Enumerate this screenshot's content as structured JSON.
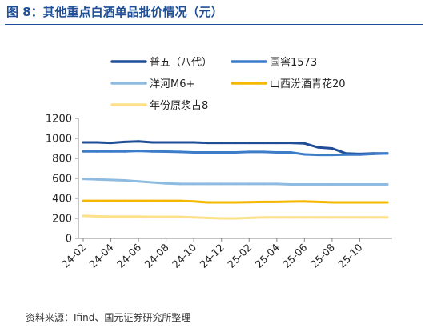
{
  "figure": {
    "title": "图 8：其他重点白酒单品批价情况（元）",
    "source": "资料来源：Ifind、国元证券研究所整理"
  },
  "chart_data": {
    "type": "line",
    "title": "",
    "xlabel": "",
    "ylabel": "",
    "ylim": [
      0,
      1200
    ],
    "yticks": [
      0,
      200,
      400,
      600,
      800,
      1000,
      1200
    ],
    "x_tick_labels": [
      "24-02",
      "24-04",
      "24-06",
      "24-08",
      "24-10",
      "24-12",
      "25-02",
      "25-04",
      "25-06",
      "25-08",
      "25-10"
    ],
    "x": [
      "24-02",
      "24-03",
      "24-04",
      "24-05",
      "24-06",
      "24-07",
      "24-08",
      "24-09",
      "24-10",
      "24-11",
      "24-12",
      "25-01",
      "25-02",
      "25-03",
      "25-04",
      "25-05",
      "25-06",
      "25-07",
      "25-08",
      "25-09",
      "25-10",
      "25-11",
      "25-12"
    ],
    "grid": false,
    "legend_position": "top",
    "series": [
      {
        "name": "普五（八代）",
        "color": "#1f4e96",
        "values": [
          960,
          960,
          955,
          965,
          970,
          960,
          960,
          960,
          960,
          955,
          955,
          955,
          955,
          955,
          955,
          955,
          950,
          910,
          900,
          850,
          845,
          850,
          850
        ]
      },
      {
        "name": "国窖1573",
        "color": "#3d7cc9",
        "values": [
          870,
          870,
          870,
          870,
          875,
          870,
          868,
          865,
          860,
          860,
          860,
          860,
          865,
          865,
          860,
          860,
          840,
          835,
          835,
          838,
          838,
          845,
          850
        ]
      },
      {
        "name": "洋河M6+",
        "color": "#8fbbe0",
        "values": [
          595,
          590,
          585,
          580,
          570,
          560,
          550,
          545,
          545,
          545,
          545,
          545,
          545,
          545,
          545,
          540,
          540,
          540,
          540,
          540,
          540,
          540,
          540
        ]
      },
      {
        "name": "山西汾酒青花20",
        "color": "#f5b800",
        "values": [
          375,
          375,
          375,
          375,
          375,
          375,
          375,
          375,
          370,
          360,
          360,
          360,
          362,
          365,
          365,
          368,
          370,
          365,
          360,
          360,
          360,
          360,
          360
        ]
      },
      {
        "name": "年份原浆古8",
        "color": "#fde18a",
        "values": [
          225,
          220,
          218,
          218,
          218,
          215,
          215,
          215,
          210,
          205,
          200,
          200,
          205,
          210,
          210,
          210,
          210,
          210,
          210,
          210,
          210,
          210,
          210
        ]
      }
    ]
  }
}
